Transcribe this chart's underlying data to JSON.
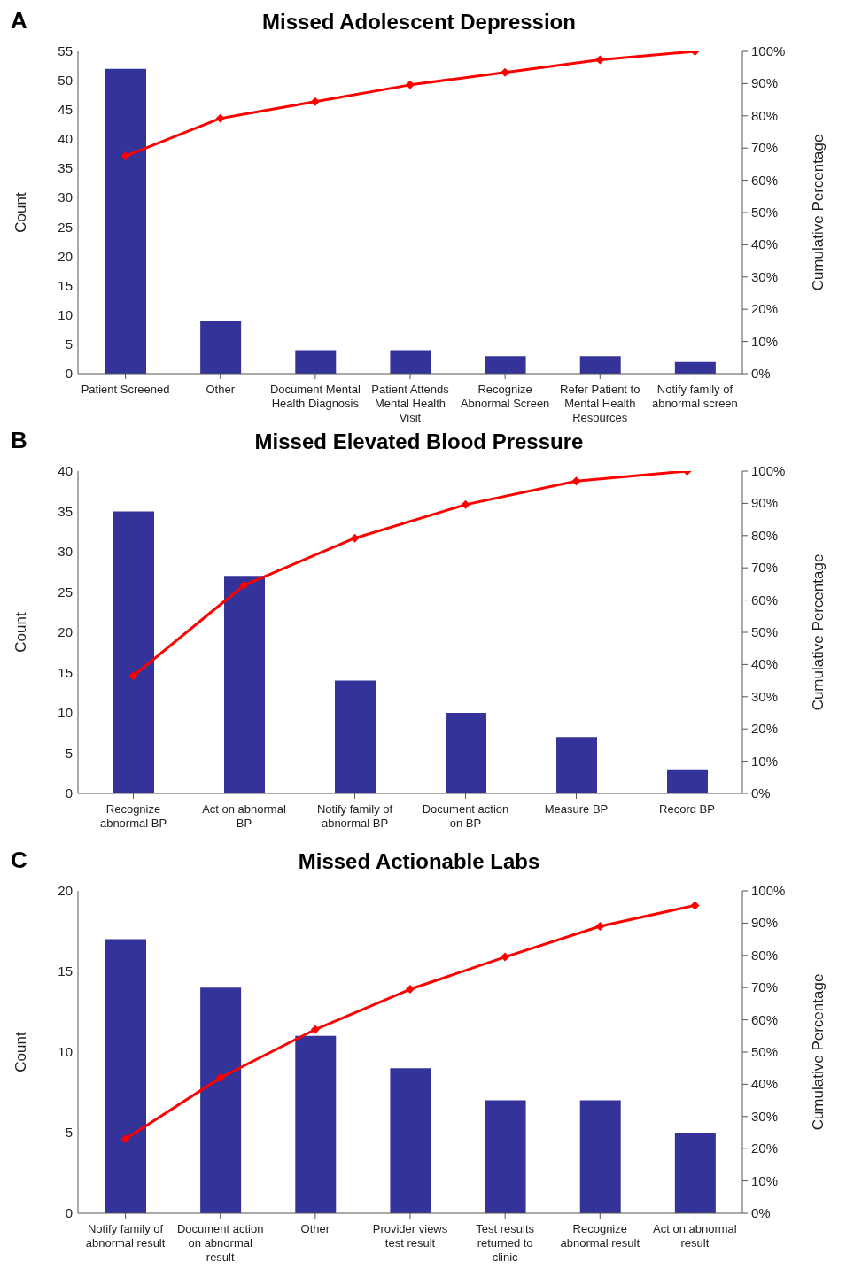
{
  "chart_data": [
    {
      "type": "bar",
      "title": "Missed Adolescent Depression",
      "annotations": [
        "A"
      ],
      "ylabel": "Count",
      "y2label": "Cumulative Percentage",
      "categories": [
        "Patient Screened",
        "Other",
        "Document Mental Health Diagnosis",
        "Patient Attends Mental Health Visit",
        "Recognize Abnormal Screen",
        "Refer Patient to Mental Health Resources",
        "Notify family of abnormal screen"
      ],
      "series": [
        {
          "color": "#333399",
          "values": [
            52,
            9,
            4,
            4,
            3,
            3,
            2
          ]
        },
        {
          "type": "line",
          "axis": "y2",
          "color": "#ff0000",
          "values": [
            67.5,
            79.2,
            84.4,
            89.6,
            93.5,
            97.4,
            100
          ]
        }
      ],
      "ylim": [
        0,
        55
      ],
      "yticks": [
        0,
        5,
        10,
        15,
        20,
        25,
        30,
        35,
        40,
        45,
        50,
        55
      ],
      "y2lim": [
        0,
        100
      ],
      "y2ticks": [
        {
          "value": 0,
          "label": "0%"
        },
        {
          "value": 10,
          "label": "10%"
        },
        {
          "value": 20,
          "label": "20%"
        },
        {
          "value": 30,
          "label": "30%"
        },
        {
          "value": 40,
          "label": "40%"
        },
        {
          "value": 50,
          "label": "50%"
        },
        {
          "value": 60,
          "label": "60%"
        },
        {
          "value": 70,
          "label": "70%"
        },
        {
          "value": 80,
          "label": "80%"
        },
        {
          "value": 90,
          "label": "90%"
        },
        {
          "value": 100,
          "label": "100%"
        }
      ],
      "marker": "diamond"
    },
    {
      "type": "bar",
      "title": "Missed Elevated Blood Pressure",
      "annotations": [
        "B"
      ],
      "ylabel": "Count",
      "y2label": "Cumulative Percentage",
      "categories": [
        "Recognize abnormal BP",
        "Act on abnormal BP",
        "Notify family of abnormal BP",
        "Document action on BP",
        "Measure BP",
        "Record BP"
      ],
      "series": [
        {
          "color": "#333399",
          "values": [
            35,
            27,
            14,
            10,
            7,
            3
          ]
        },
        {
          "type": "line",
          "axis": "y2",
          "color": "#ff0000",
          "values": [
            36.5,
            64.6,
            79.2,
            89.6,
            96.9,
            100
          ]
        }
      ],
      "ylim": [
        0,
        40
      ],
      "yticks": [
        0,
        5,
        10,
        15,
        20,
        25,
        30,
        35,
        40
      ],
      "y2lim": [
        0,
        100
      ],
      "y2ticks": [
        {
          "value": 0,
          "label": "0%"
        },
        {
          "value": 10,
          "label": "10%"
        },
        {
          "value": 20,
          "label": "20%"
        },
        {
          "value": 30,
          "label": "30%"
        },
        {
          "value": 40,
          "label": "40%"
        },
        {
          "value": 50,
          "label": "50%"
        },
        {
          "value": 60,
          "label": "60%"
        },
        {
          "value": 70,
          "label": "70%"
        },
        {
          "value": 80,
          "label": "80%"
        },
        {
          "value": 90,
          "label": "90%"
        },
        {
          "value": 100,
          "label": "100%"
        }
      ],
      "marker": "diamond"
    },
    {
      "type": "bar",
      "title": "Missed Actionable Labs",
      "annotations": [
        "C"
      ],
      "ylabel": "Count",
      "y2label": "Cumulative Percentage",
      "categories": [
        "Notify family of abnormal result",
        "Document action on abnormal result",
        "Other",
        "Provider views test result",
        "Test results returned to clinic",
        "Recognize abnormal result",
        "Act on abnormal result"
      ],
      "series": [
        {
          "color": "#333399",
          "values": [
            17,
            14,
            11,
            9,
            7,
            7,
            5
          ]
        },
        {
          "type": "line",
          "axis": "y2",
          "color": "#ff0000",
          "values": [
            23,
            42,
            57,
            69.5,
            79.5,
            89,
            95.5
          ]
        }
      ],
      "ylim": [
        0,
        20
      ],
      "yticks": [
        0,
        5,
        10,
        15,
        20
      ],
      "y2lim": [
        0,
        100
      ],
      "y2ticks": [
        {
          "value": 0,
          "label": "0%"
        },
        {
          "value": 10,
          "label": "10%"
        },
        {
          "value": 20,
          "label": "20%"
        },
        {
          "value": 30,
          "label": "30%"
        },
        {
          "value": 40,
          "label": "40%"
        },
        {
          "value": 50,
          "label": "50%"
        },
        {
          "value": 60,
          "label": "60%"
        },
        {
          "value": 70,
          "label": "70%"
        },
        {
          "value": 80,
          "label": "80%"
        },
        {
          "value": 90,
          "label": "90%"
        },
        {
          "value": 100,
          "label": "100%"
        }
      ],
      "marker": "diamond"
    }
  ]
}
